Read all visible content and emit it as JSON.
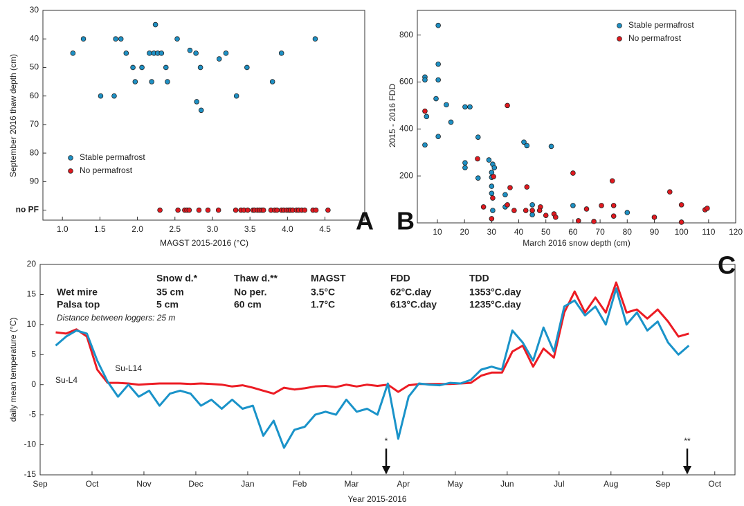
{
  "chart_data": [
    {
      "type": "scatter",
      "panel_label": "A",
      "x_label": "MAGST 2015-2016 (°C)",
      "y_label": "September 2016 thaw depth (cm)",
      "xlim": [
        0.74,
        5.03
      ],
      "ylim": [
        103.5,
        30
      ],
      "xticks": [
        {
          "value": 1,
          "label": "1.0"
        },
        1.5,
        {
          "value": 2,
          "label": "2.0"
        },
        2.5,
        {
          "value": 3,
          "label": "3.0"
        },
        3.5,
        {
          "value": 4,
          "label": "4.0"
        },
        4.5
      ],
      "yticks": [
        30,
        40,
        50,
        60,
        70,
        80,
        90,
        {
          "value": 100,
          "label": "no PF"
        }
      ],
      "legend_position": "lower left",
      "series": [
        {
          "name": "Stable permafrost",
          "color": "#1e90c4",
          "x": [
            1.14,
            1.28,
            1.51,
            1.71,
            1.69,
            1.78,
            1.85,
            1.94,
            1.97,
            2.06,
            2.16,
            2.19,
            2.24,
            2.22,
            2.27,
            2.32,
            2.38,
            2.4,
            2.53,
            2.7,
            2.78,
            2.84,
            2.79,
            2.85,
            3.09,
            3.18,
            3.32,
            3.46,
            3.8,
            3.92,
            4.37
          ],
          "values": [
            45,
            40,
            60,
            40,
            60,
            40,
            45,
            50,
            55,
            50,
            45,
            55,
            35,
            45,
            45,
            45,
            50,
            55,
            40,
            44,
            45,
            50,
            62,
            65,
            47,
            45,
            60,
            50,
            55,
            45,
            40
          ]
        },
        {
          "name": "No permafrost",
          "color": "#e0191f",
          "x": [
            2.3,
            2.54,
            2.63,
            2.66,
            2.69,
            2.82,
            2.94,
            3.08,
            3.31,
            3.38,
            3.42,
            3.47,
            3.54,
            3.56,
            3.6,
            3.63,
            3.66,
            3.68,
            3.78,
            3.83,
            3.86,
            3.92,
            3.95,
            3.99,
            4.02,
            4.04,
            4.07,
            4.12,
            4.15,
            4.19,
            4.23,
            4.34,
            4.38,
            4.54
          ],
          "values": [
            100,
            100,
            100,
            100,
            100,
            100,
            100,
            100,
            100,
            100,
            100,
            100,
            100,
            100,
            100,
            100,
            100,
            100,
            100,
            100,
            100,
            100,
            100,
            100,
            100,
            100,
            100,
            100,
            100,
            100,
            100,
            100,
            100,
            100
          ]
        }
      ]
    },
    {
      "type": "scatter",
      "panel_label": "B",
      "x_label": "March 2016 snow depth (cm)",
      "y_label": "2015 - 2016 FDD",
      "xlim": [
        2.6,
        120
      ],
      "ylim": [
        0,
        905
      ],
      "xticks": [
        10,
        20,
        30,
        40,
        50,
        60,
        70,
        80,
        90,
        100,
        110,
        120
      ],
      "yticks": [
        200,
        400,
        600,
        800
      ],
      "legend_position": "upper right",
      "series": [
        {
          "name": "Stable permafrost",
          "color": "#1e90c4",
          "x": [
            5.4,
            5.4,
            6,
            5.4,
            9.5,
            10.3,
            10.3,
            10.3,
            10.3,
            13.3,
            15,
            20.2,
            22,
            20.2,
            20.2,
            25,
            25,
            29,
            30,
            30.4,
            31,
            30,
            30,
            30,
            30.4,
            35,
            35,
            41.9,
            43,
            52,
            45,
            45,
            60,
            80
          ],
          "values": [
            621,
            609,
            453,
            332,
            529,
            841,
            676,
            609,
            368,
            503,
            429,
            494,
            494,
            256,
            235,
            365,
            191,
            268,
            215,
            250,
            235,
            194,
            156,
            126,
            53,
            120,
            68,
            344,
            329,
            326,
            77,
            35,
            74,
            44
          ]
        },
        {
          "name": "No permafrost",
          "color": "#e0191f",
          "x": [
            5.4,
            24.8,
            30.7,
            30.4,
            27,
            30,
            35.8,
            35.8,
            36.8,
            43,
            45,
            38.3,
            42.6,
            48,
            47.7,
            53,
            53.6,
            50,
            60,
            65,
            67.7,
            62,
            70.5,
            74.5,
            75,
            75,
            90,
            95.7,
            100,
            100,
            108.7,
            109.5
          ],
          "values": [
            476,
            273,
            197,
            106,
            68,
            18,
            500,
            77,
            150,
            153,
            53,
            53,
            53,
            68,
            53,
            38,
            24,
            32,
            212,
            59,
            6,
            9,
            74,
            179,
            74,
            29,
            24,
            132,
            77,
            3,
            56,
            62
          ]
        }
      ]
    },
    {
      "type": "line",
      "panel_label": "C",
      "x_label": "Year 2015-2016",
      "y_label": "daily mean temperature (°C)",
      "xlim": [
        0,
        13.39
      ],
      "ylim": [
        -15,
        20
      ],
      "xticks": [
        {
          "value": 0,
          "label": "Sep"
        },
        {
          "value": 1,
          "label": "Oct"
        },
        {
          "value": 2,
          "label": "Nov"
        },
        {
          "value": 3,
          "label": "Dec"
        },
        {
          "value": 4,
          "label": "Jan"
        },
        {
          "value": 5,
          "label": "Feb"
        },
        {
          "value": 6,
          "label": "Mar"
        },
        {
          "value": 7,
          "label": "Apr"
        },
        {
          "value": 8,
          "label": "May"
        },
        {
          "value": 9,
          "label": "Jun"
        },
        {
          "value": 10,
          "label": "Jul"
        },
        {
          "value": 11,
          "label": "Aug"
        },
        {
          "value": 12,
          "label": "Sep"
        },
        {
          "value": 13,
          "label": "Oct"
        }
      ],
      "yticks": [
        -15,
        -10,
        -5,
        0,
        5,
        10,
        15,
        20
      ],
      "x": [
        0.3,
        0.5,
        0.7,
        0.9,
        1.1,
        1.3,
        1.5,
        1.7,
        1.9,
        2.1,
        2.3,
        2.5,
        2.7,
        2.9,
        3.1,
        3.3,
        3.5,
        3.7,
        3.9,
        4.1,
        4.3,
        4.5,
        4.7,
        4.9,
        5.1,
        5.3,
        5.5,
        5.7,
        5.9,
        6.1,
        6.3,
        6.5,
        6.7,
        6.9,
        7.1,
        7.3,
        7.5,
        7.7,
        7.9,
        8.1,
        8.3,
        8.5,
        8.7,
        8.9,
        9.1,
        9.3,
        9.5,
        9.7,
        9.9,
        10.1,
        10.3,
        10.5,
        10.7,
        10.9,
        11.1,
        11.3,
        11.5,
        11.7,
        11.9,
        12.1,
        12.3,
        12.5
      ],
      "series": [
        {
          "name": "Su-L14",
          "color": "#ec1c24",
          "values": [
            8.7,
            8.5,
            9.2,
            8.0,
            2.5,
            0.3,
            0.3,
            0.2,
            0.0,
            0.1,
            0.2,
            0.2,
            0.2,
            0.1,
            0.2,
            0.1,
            0.0,
            -0.3,
            -0.1,
            -0.5,
            -1.0,
            -1.5,
            -0.5,
            -0.8,
            -0.6,
            -0.3,
            -0.2,
            -0.4,
            0.0,
            -0.3,
            0.0,
            -0.2,
            0.0,
            -1.2,
            -0.1,
            0.1,
            0.1,
            0.1,
            0.1,
            0.2,
            0.3,
            1.5,
            2.0,
            2.0,
            5.5,
            6.5,
            3.0,
            6.0,
            4.5,
            12.0,
            15.5,
            12.0,
            14.5,
            12.0,
            17.0,
            12.0,
            12.5,
            11.0,
            12.5,
            10.5,
            8.0,
            8.5
          ]
        },
        {
          "name": "Su-L4",
          "color": "#1a93c9",
          "values": [
            6.5,
            8.0,
            9.0,
            8.5,
            4.0,
            0.5,
            -2.0,
            0.0,
            -2.0,
            -1.0,
            -3.5,
            -1.5,
            -1.0,
            -1.5,
            -3.5,
            -2.5,
            -4.0,
            -2.5,
            -4.0,
            -3.5,
            -8.5,
            -6.0,
            -10.5,
            -7.5,
            -7.0,
            -5.0,
            -4.5,
            -5.0,
            -2.5,
            -4.5,
            -4.0,
            -5.0,
            0.2,
            -9.0,
            -2.0,
            0.2,
            0.0,
            -0.1,
            0.3,
            0.2,
            0.8,
            2.5,
            3.0,
            2.5,
            9.0,
            7.0,
            4.0,
            9.5,
            5.5,
            13.0,
            14.0,
            11.5,
            13.0,
            10.0,
            16.0,
            10.0,
            12.0,
            9.0,
            10.5,
            7.0,
            5.0,
            6.5
          ]
        }
      ],
      "table": {
        "header": [
          "Snow d.*",
          "Thaw d.**",
          "MAGST",
          "FDD",
          "TDD"
        ],
        "rows": [
          [
            "Wet mire",
            "35 cm",
            "No per.",
            "3.5°C",
            "62°C.day",
            "1353°C.day"
          ],
          [
            "Palsa top",
            "5 cm",
            "60 cm",
            "1.7°C",
            "613°C.day",
            "1235°C.day"
          ]
        ]
      },
      "note": "Distance between loggers: 25 m",
      "markers": [
        "*",
        "**"
      ]
    }
  ]
}
